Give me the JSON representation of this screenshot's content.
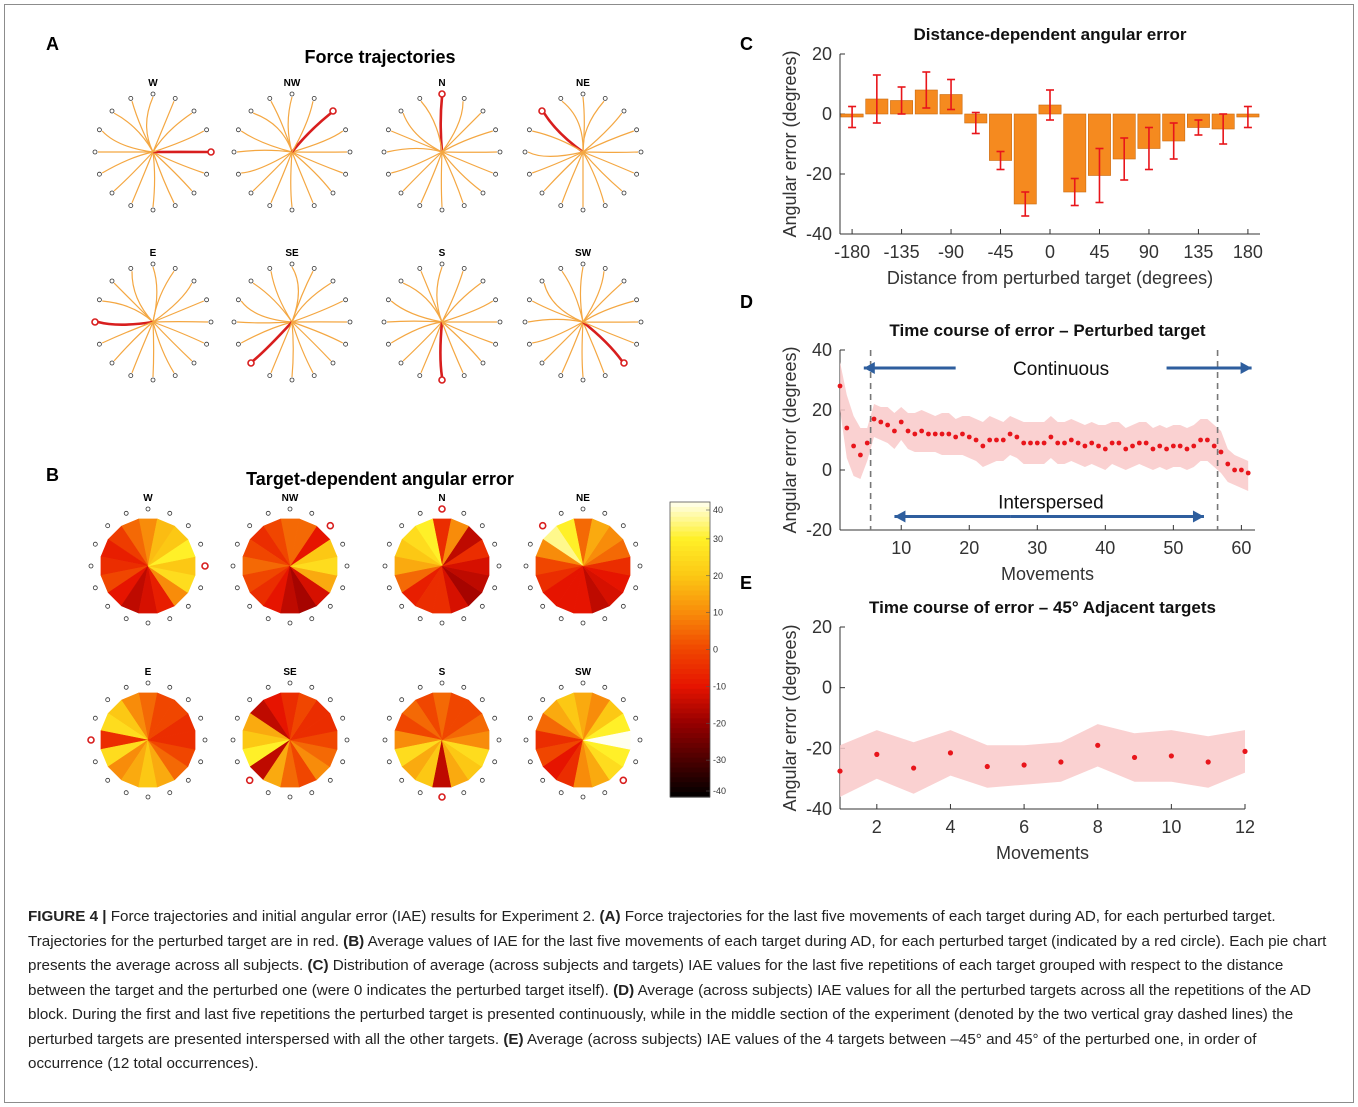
{
  "panel_labels": [
    "A",
    "B",
    "C",
    "D",
    "E"
  ],
  "panel_a": {
    "title": "Force trajectories",
    "wheels": [
      {
        "label": "W",
        "perturbed_index": 12
      },
      {
        "label": "NW",
        "perturbed_index": 14
      },
      {
        "label": "N",
        "perturbed_index": 0
      },
      {
        "label": "NE",
        "perturbed_index": 2
      },
      {
        "label": "E",
        "perturbed_index": 4
      },
      {
        "label": "SE",
        "perturbed_index": 6
      },
      {
        "label": "S",
        "perturbed_index": 8
      },
      {
        "label": "SW",
        "perturbed_index": 10
      }
    ],
    "trajectory_color": "#f4a742",
    "perturbed_color": "#d81e1e"
  },
  "panel_b": {
    "title": "Target-dependent angular error",
    "wheels": [
      {
        "label": "W",
        "perturbed_index": 12,
        "values": [
          10,
          5,
          -2,
          -8,
          -5,
          0,
          -10,
          -15,
          -12,
          -8,
          10,
          25,
          20,
          30,
          20,
          18
        ]
      },
      {
        "label": "NW",
        "perturbed_index": 14,
        "values": [
          5,
          0,
          -5,
          0,
          5,
          0,
          -5,
          -10,
          -15,
          -18,
          -12,
          15,
          25,
          20,
          -10,
          5
        ]
      },
      {
        "label": "N",
        "perturbed_index": 0,
        "values": [
          -5,
          30,
          25,
          20,
          15,
          5,
          -8,
          -5,
          -5,
          -12,
          -18,
          -15,
          -12,
          -5,
          -15,
          10
        ]
      },
      {
        "label": "NE",
        "perturbed_index": 2,
        "values": [
          5,
          30,
          35,
          10,
          0,
          -5,
          -10,
          -10,
          -10,
          -15,
          -12,
          -10,
          -5,
          5,
          10,
          15
        ]
      },
      {
        "label": "E",
        "perturbed_index": 4,
        "values": [
          5,
          10,
          20,
          25,
          -5,
          25,
          10,
          15,
          20,
          15,
          5,
          0,
          -5,
          -5,
          0,
          0
        ]
      },
      {
        "label": "SE",
        "perturbed_index": 6,
        "values": [
          -5,
          -10,
          -15,
          15,
          20,
          30,
          -15,
          15,
          5,
          0,
          10,
          5,
          0,
          -5,
          -5,
          0
        ]
      },
      {
        "label": "S",
        "perturbed_index": 8,
        "values": [
          5,
          0,
          5,
          0,
          10,
          25,
          15,
          20,
          -15,
          15,
          20,
          25,
          10,
          5,
          0,
          0
        ]
      },
      {
        "label": "SW",
        "perturbed_index": 10,
        "values": [
          15,
          20,
          15,
          5,
          -5,
          0,
          -10,
          -5,
          10,
          15,
          25,
          30,
          40,
          30,
          20,
          10
        ]
      }
    ],
    "colorbar": {
      "ticks": [
        "40",
        "30",
        "20",
        "10",
        "0",
        "-10",
        "-20",
        "-30",
        "-40"
      ],
      "min": -40,
      "max": 40
    }
  },
  "chart_data": [
    {
      "type": "bar",
      "title": "Distance-dependent angular error",
      "xlabel": "Distance from perturbed target (degrees)",
      "ylabel": "Angular error (degrees)",
      "xticks": [
        "-180",
        "-135",
        "-90",
        "-45",
        "0",
        "45",
        "90",
        "135",
        "180"
      ],
      "yticks": [
        "20",
        "0",
        "-20",
        "-40"
      ],
      "ylim": [
        -40,
        20
      ],
      "categories": [
        -180,
        -157.5,
        -135,
        -112.5,
        -90,
        -67.5,
        -45,
        -22.5,
        0,
        22.5,
        45,
        67.5,
        90,
        112.5,
        135,
        157.5,
        180
      ],
      "values": [
        -1,
        5,
        4.5,
        8,
        6.5,
        -3,
        -15.5,
        -30,
        3,
        -26,
        -20.5,
        -15,
        -11.5,
        -9,
        -4.5,
        -5,
        -1
      ],
      "errors": [
        3.5,
        8,
        4.5,
        6,
        5,
        3.5,
        3,
        4,
        5,
        4.5,
        9,
        7,
        7,
        6,
        2.5,
        5,
        3.5
      ],
      "bar_color": "#f58a1f",
      "error_color": "#e8151b"
    },
    {
      "type": "scatter",
      "title": "Time course of error – Perturbed target",
      "xlabel": "Movements",
      "ylabel": "Angular error (degrees)",
      "xticks": [
        "10",
        "20",
        "30",
        "40",
        "50",
        "60"
      ],
      "yticks": [
        "40",
        "20",
        "0",
        "-20"
      ],
      "xlim": [
        1,
        62
      ],
      "ylim": [
        -20,
        40
      ],
      "annotations": {
        "continuous": "Continuous",
        "interspersed": "Interspersed"
      },
      "dashed_lines_x": [
        5.5,
        56.5
      ],
      "x": [
        1,
        2,
        3,
        4,
        5,
        6,
        7,
        8,
        9,
        10,
        11,
        12,
        13,
        14,
        15,
        16,
        17,
        18,
        19,
        20,
        21,
        22,
        23,
        24,
        25,
        26,
        27,
        28,
        29,
        30,
        31,
        32,
        33,
        34,
        35,
        36,
        37,
        38,
        39,
        40,
        41,
        42,
        43,
        44,
        45,
        46,
        47,
        48,
        49,
        50,
        51,
        52,
        53,
        54,
        55,
        56,
        57,
        58,
        59,
        60,
        61
      ],
      "y": [
        28,
        14,
        8,
        5,
        9,
        17,
        16,
        15,
        13,
        16,
        13,
        12,
        13,
        12,
        12,
        12,
        12,
        11,
        12,
        11,
        10,
        8,
        10,
        10,
        10,
        12,
        11,
        9,
        9,
        9,
        9,
        11,
        9,
        9,
        10,
        9,
        8,
        9,
        8,
        7,
        9,
        9,
        7,
        8,
        9,
        9,
        7,
        8,
        7,
        8,
        8,
        7,
        8,
        10,
        10,
        8,
        6,
        2,
        0,
        0,
        -1
      ],
      "band_upper": [
        36,
        25,
        18,
        14,
        14,
        22,
        21,
        21,
        19,
        21,
        19,
        19,
        20,
        19,
        18,
        19,
        19,
        17,
        18,
        18,
        17,
        16,
        18,
        17,
        16,
        18,
        17,
        16,
        16,
        16,
        16,
        18,
        16,
        16,
        17,
        16,
        15,
        16,
        15,
        15,
        16,
        16,
        14,
        15,
        16,
        16,
        14,
        15,
        14,
        15,
        15,
        14,
        15,
        17,
        17,
        15,
        13,
        7,
        5,
        4,
        3
      ],
      "band_lower": [
        20,
        4,
        -2,
        -3,
        3,
        11,
        10,
        9,
        7,
        10,
        7,
        6,
        6,
        6,
        6,
        5,
        5,
        5,
        5,
        4,
        3,
        1,
        2,
        3,
        3,
        5,
        4,
        2,
        2,
        2,
        2,
        4,
        2,
        2,
        3,
        2,
        1,
        2,
        1,
        0,
        2,
        1,
        0,
        1,
        2,
        1,
        0,
        1,
        0,
        1,
        1,
        0,
        1,
        3,
        3,
        1,
        -1,
        -4,
        -5,
        -6,
        -7
      ],
      "point_color": "#e8151b",
      "band_color": "#f9c9c9",
      "arrow_color": "#2e5e9e"
    },
    {
      "type": "scatter",
      "title": "Time course of error – 45° Adjacent targets",
      "xlabel": "Movements",
      "ylabel": "Angular error (degrees)",
      "xticks": [
        "2",
        "4",
        "6",
        "8",
        "10",
        "12"
      ],
      "yticks": [
        "20",
        "0",
        "-20",
        "-40"
      ],
      "xlim": [
        1,
        12
      ],
      "ylim": [
        -40,
        20
      ],
      "x": [
        1,
        2,
        3,
        4,
        5,
        6,
        7,
        8,
        9,
        10,
        11,
        12
      ],
      "y": [
        -27.5,
        -22,
        -26.5,
        -21.5,
        -26,
        -25.5,
        -24.5,
        -19,
        -23,
        -22.5,
        -24.5,
        -21
      ],
      "band_upper": [
        -19,
        -14,
        -18,
        -14,
        -19,
        -19,
        -18,
        -12,
        -15,
        -14,
        -16,
        -14
      ],
      "band_lower": [
        -36,
        -30,
        -35,
        -29,
        -33,
        -32,
        -31,
        -26,
        -31,
        -31,
        -33,
        -28
      ],
      "point_color": "#e8151b",
      "band_color": "#f9c9c9"
    }
  ],
  "caption": {
    "head": "FIGURE 4 |",
    "intro": " Force trajectories and initial angular error (IAE) results for Experiment 2. ",
    "a_tag": "(A)",
    "a_text": " Force trajectories for the last five movements of each target during AD, for each perturbed target. Trajectories for the perturbed target are in red. ",
    "b_tag": "(B)",
    "b_text": " Average values of IAE for the last five movements of each target during AD, for each perturbed target (indicated by a red circle). Each pie chart presents the average across all subjects. ",
    "c_tag": "(C)",
    "c_text": " Distribution of average (across subjects and targets) IAE values for the last five repetitions of each target grouped with respect to the distance between the target and the perturbed one (were 0 indicates the perturbed target itself). ",
    "d_tag": "(D)",
    "d_text": " Average (across subjects) IAE values for all the perturbed targets across all the repetitions of the AD block. During the first and last five repetitions the perturbed target is presented continuously, while in the middle section of the experiment (denoted by the two vertical gray dashed lines) the perturbed targets are presented interspersed with all the other targets. ",
    "e_tag": "(E)",
    "e_text": " Average (across subjects) IAE values of the 4 targets between –45° and 45° of the perturbed one, in order of occurrence (12 total occurrences)."
  }
}
